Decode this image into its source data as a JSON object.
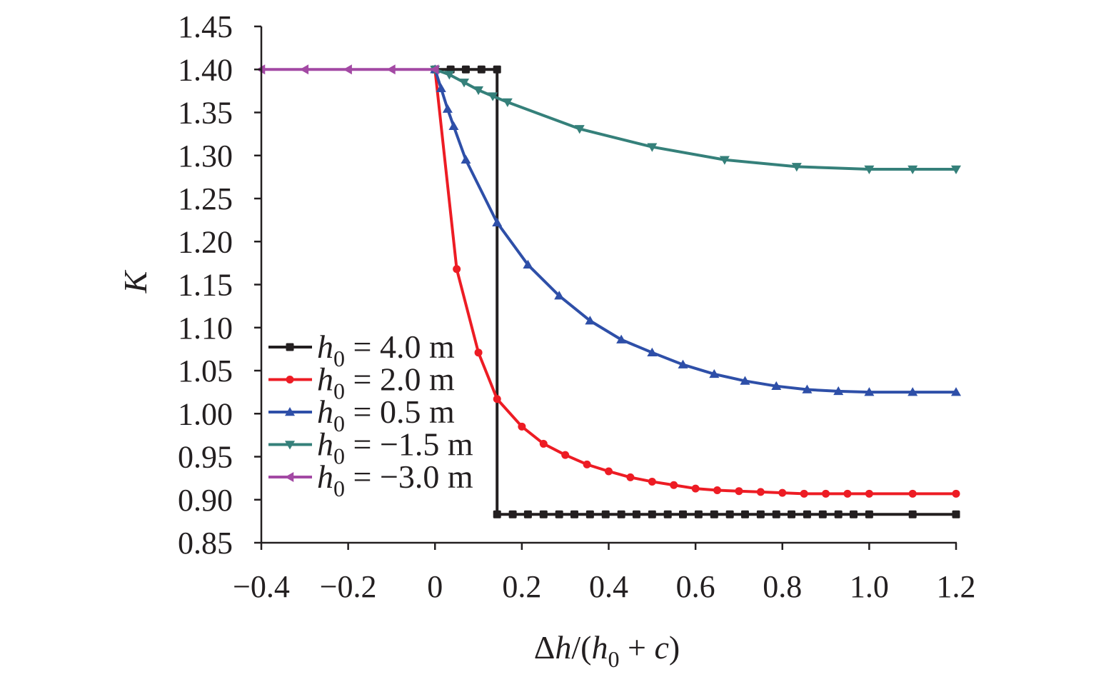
{
  "chart_data": {
    "type": "line",
    "title": "",
    "xlabel": {
      "prefix": "Δ",
      "var1": "h",
      "mid": "/(",
      "var2": "h",
      "sub": "0",
      "plus": " + ",
      "var3": "c",
      "suffix": ")"
    },
    "ylabel": "K",
    "xlim": [
      -0.4,
      1.2
    ],
    "ylim": [
      0.85,
      1.45
    ],
    "xticks": [
      -0.4,
      -0.2,
      0,
      0.2,
      0.4,
      0.6,
      0.8,
      1.0,
      1.2
    ],
    "xtick_labels": [
      "−0.4",
      "−0.2",
      "0",
      "0.2",
      "0.4",
      "0.6",
      "0.8",
      "1.0",
      "1.2"
    ],
    "yticks": [
      0.85,
      0.9,
      0.95,
      1.0,
      1.05,
      1.1,
      1.15,
      1.2,
      1.25,
      1.3,
      1.35,
      1.4,
      1.45
    ],
    "ytick_labels": [
      "0.85",
      "0.90",
      "0.95",
      "1.00",
      "1.05",
      "1.10",
      "1.15",
      "1.20",
      "1.25",
      "1.30",
      "1.35",
      "1.40",
      "1.45"
    ],
    "grid": false,
    "legend_position": "left-middle",
    "series": [
      {
        "name": "h0 = 4.0 m",
        "label_var": "h",
        "label_sub": "0",
        "label_rest": " = 4.0 m",
        "color": "#231f20",
        "marker": "square",
        "x": [
          0,
          0.036,
          0.071,
          0.107,
          0.143,
          0.143,
          0.179,
          0.214,
          0.25,
          0.286,
          0.321,
          0.357,
          0.393,
          0.429,
          0.464,
          0.5,
          0.536,
          0.571,
          0.607,
          0.643,
          0.679,
          0.714,
          0.75,
          0.786,
          0.821,
          0.857,
          0.893,
          0.929,
          0.964,
          1.0,
          1.1,
          1.2
        ],
        "y": [
          1.4,
          1.4,
          1.4,
          1.4,
          1.4,
          0.883,
          0.883,
          0.883,
          0.883,
          0.883,
          0.883,
          0.883,
          0.883,
          0.883,
          0.883,
          0.883,
          0.883,
          0.883,
          0.883,
          0.883,
          0.883,
          0.883,
          0.883,
          0.883,
          0.883,
          0.883,
          0.883,
          0.883,
          0.883,
          0.883,
          0.883,
          0.883
        ]
      },
      {
        "name": "h0 = 2.0 m",
        "label_var": "h",
        "label_sub": "0",
        "label_rest": " = 2.0 m",
        "color": "#ed1c24",
        "marker": "circle",
        "x": [
          0,
          0.05,
          0.1,
          0.143,
          0.2,
          0.25,
          0.3,
          0.35,
          0.4,
          0.45,
          0.5,
          0.55,
          0.6,
          0.65,
          0.7,
          0.75,
          0.8,
          0.85,
          0.9,
          0.95,
          1.0,
          1.1,
          1.2
        ],
        "y": [
          1.4,
          1.168,
          1.071,
          1.017,
          0.985,
          0.965,
          0.952,
          0.941,
          0.933,
          0.926,
          0.921,
          0.917,
          0.913,
          0.911,
          0.91,
          0.909,
          0.908,
          0.907,
          0.907,
          0.907,
          0.907,
          0.907,
          0.907
        ]
      },
      {
        "name": "h0 = 0.5 m",
        "label_var": "h",
        "label_sub": "0",
        "label_rest": " = 0.5 m",
        "color": "#2e4fa8",
        "marker": "triangle-up",
        "x": [
          0,
          0.014,
          0.029,
          0.043,
          0.071,
          0.143,
          0.214,
          0.286,
          0.357,
          0.429,
          0.5,
          0.571,
          0.643,
          0.714,
          0.786,
          0.857,
          0.929,
          1.0,
          1.1,
          1.2
        ],
        "y": [
          1.4,
          1.378,
          1.354,
          1.334,
          1.295,
          1.222,
          1.173,
          1.137,
          1.108,
          1.086,
          1.071,
          1.057,
          1.046,
          1.038,
          1.032,
          1.028,
          1.026,
          1.025,
          1.025,
          1.025
        ]
      },
      {
        "name": "h0 = −1.5 m",
        "label_var": "h",
        "label_sub": "0",
        "label_rest": " = −1.5 m",
        "color": "#35807a",
        "marker": "triangle-down",
        "x": [
          0,
          0.033,
          0.067,
          0.1,
          0.133,
          0.167,
          0.333,
          0.5,
          0.667,
          0.833,
          1.0,
          1.1,
          1.2
        ],
        "y": [
          1.4,
          1.394,
          1.385,
          1.376,
          1.369,
          1.362,
          1.331,
          1.31,
          1.295,
          1.287,
          1.284,
          1.284,
          1.284
        ]
      },
      {
        "name": "h0 = −3.0 m",
        "label_var": "h",
        "label_sub": "0",
        "label_rest": " = −3.0 m",
        "color": "#a349a4",
        "marker": "triangle-left",
        "x": [
          -0.4,
          -0.3,
          -0.2,
          -0.1,
          0
        ],
        "y": [
          1.4,
          1.4,
          1.4,
          1.4,
          1.4
        ]
      }
    ]
  }
}
